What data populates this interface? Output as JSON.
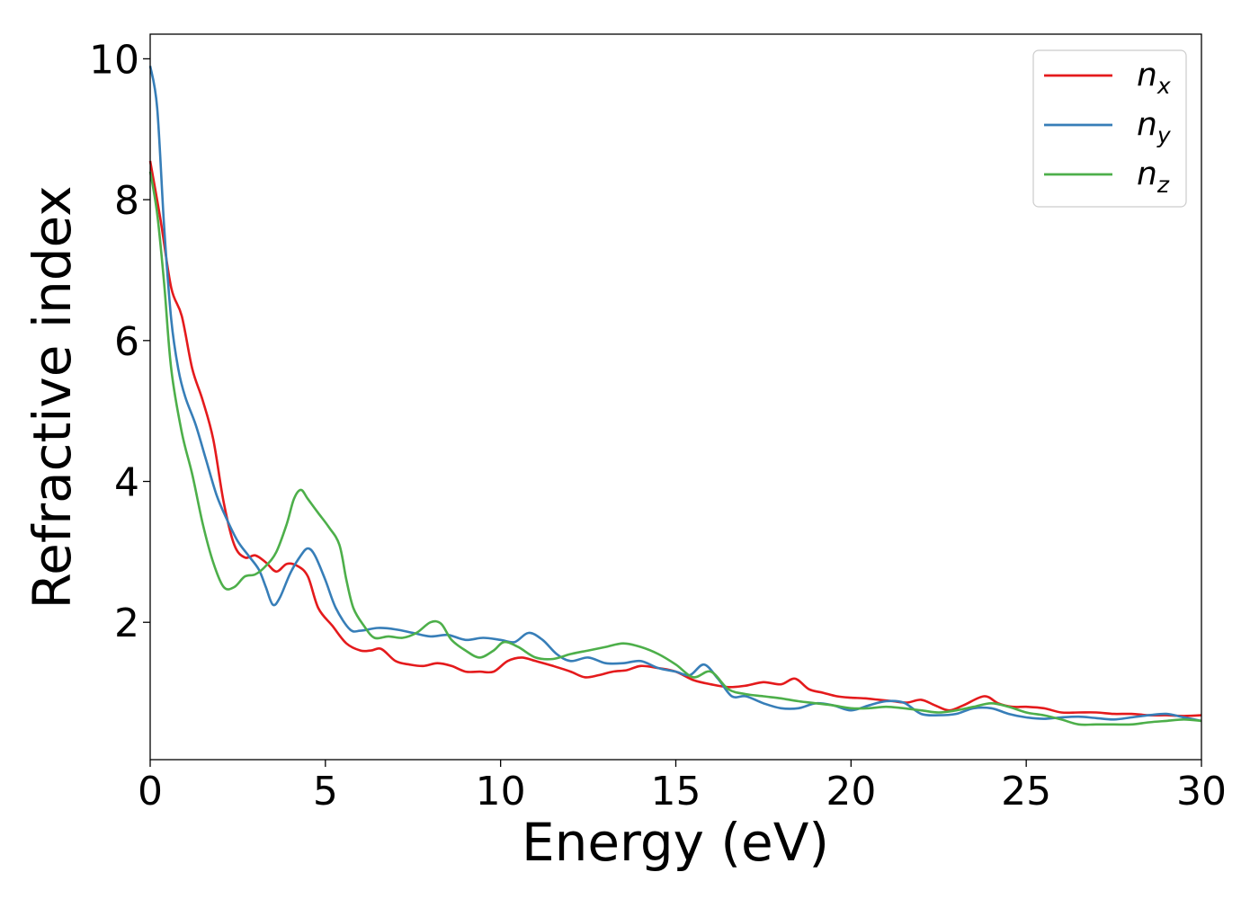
{
  "chart_data": {
    "type": "line",
    "xlabel": "Energy (eV)",
    "ylabel": "Refractive index",
    "xlim": [
      0,
      30
    ],
    "ylim": [
      0.05,
      10.35
    ],
    "xticks": [
      "0",
      "5",
      "10",
      "15",
      "20",
      "25",
      "30"
    ],
    "yticks": [
      "2",
      "4",
      "6",
      "8",
      "10"
    ],
    "grid": false,
    "legend_position": "top-right",
    "series": [
      {
        "name": "n",
        "subscript": "x",
        "color": "#e41a1c",
        "points": [
          [
            0,
            8.55
          ],
          [
            0.3,
            7.7
          ],
          [
            0.6,
            6.75
          ],
          [
            0.9,
            6.35
          ],
          [
            1.2,
            5.6
          ],
          [
            1.5,
            5.15
          ],
          [
            1.8,
            4.6
          ],
          [
            2.1,
            3.7
          ],
          [
            2.4,
            3.1
          ],
          [
            2.7,
            2.92
          ],
          [
            3.0,
            2.95
          ],
          [
            3.3,
            2.85
          ],
          [
            3.6,
            2.72
          ],
          [
            3.9,
            2.83
          ],
          [
            4.2,
            2.8
          ],
          [
            4.5,
            2.65
          ],
          [
            4.8,
            2.2
          ],
          [
            5.2,
            1.95
          ],
          [
            5.6,
            1.7
          ],
          [
            6.0,
            1.6
          ],
          [
            6.3,
            1.6
          ],
          [
            6.6,
            1.62
          ],
          [
            7.0,
            1.45
          ],
          [
            7.4,
            1.4
          ],
          [
            7.8,
            1.38
          ],
          [
            8.2,
            1.42
          ],
          [
            8.6,
            1.38
          ],
          [
            9.0,
            1.3
          ],
          [
            9.4,
            1.3
          ],
          [
            9.8,
            1.3
          ],
          [
            10.2,
            1.45
          ],
          [
            10.6,
            1.5
          ],
          [
            11.0,
            1.45
          ],
          [
            11.5,
            1.38
          ],
          [
            12.0,
            1.3
          ],
          [
            12.4,
            1.22
          ],
          [
            12.8,
            1.25
          ],
          [
            13.2,
            1.3
          ],
          [
            13.6,
            1.32
          ],
          [
            14.0,
            1.38
          ],
          [
            14.5,
            1.35
          ],
          [
            15.0,
            1.3
          ],
          [
            15.5,
            1.18
          ],
          [
            16.0,
            1.12
          ],
          [
            16.5,
            1.08
          ],
          [
            17.0,
            1.1
          ],
          [
            17.5,
            1.15
          ],
          [
            18.0,
            1.12
          ],
          [
            18.4,
            1.2
          ],
          [
            18.8,
            1.05
          ],
          [
            19.2,
            1.0
          ],
          [
            19.6,
            0.95
          ],
          [
            20.0,
            0.93
          ],
          [
            20.4,
            0.92
          ],
          [
            20.8,
            0.9
          ],
          [
            21.2,
            0.88
          ],
          [
            21.6,
            0.86
          ],
          [
            22.0,
            0.9
          ],
          [
            22.4,
            0.82
          ],
          [
            22.8,
            0.75
          ],
          [
            23.2,
            0.82
          ],
          [
            23.8,
            0.95
          ],
          [
            24.2,
            0.85
          ],
          [
            24.6,
            0.8
          ],
          [
            25.0,
            0.8
          ],
          [
            25.5,
            0.78
          ],
          [
            26.0,
            0.72
          ],
          [
            26.5,
            0.72
          ],
          [
            27.0,
            0.72
          ],
          [
            27.5,
            0.7
          ],
          [
            28.0,
            0.7
          ],
          [
            28.5,
            0.68
          ],
          [
            29.0,
            0.68
          ],
          [
            29.5,
            0.67
          ],
          [
            30.0,
            0.68
          ]
        ]
      },
      {
        "name": "n",
        "subscript": "y",
        "color": "#377eb8",
        "points": [
          [
            0,
            9.9
          ],
          [
            0.2,
            9.3
          ],
          [
            0.4,
            7.6
          ],
          [
            0.6,
            6.3
          ],
          [
            0.8,
            5.6
          ],
          [
            1.0,
            5.2
          ],
          [
            1.3,
            4.8
          ],
          [
            1.6,
            4.3
          ],
          [
            1.9,
            3.8
          ],
          [
            2.2,
            3.45
          ],
          [
            2.5,
            3.15
          ],
          [
            2.8,
            2.95
          ],
          [
            3.1,
            2.75
          ],
          [
            3.3,
            2.5
          ],
          [
            3.5,
            2.25
          ],
          [
            3.7,
            2.35
          ],
          [
            4.0,
            2.7
          ],
          [
            4.3,
            2.95
          ],
          [
            4.5,
            3.05
          ],
          [
            4.7,
            2.95
          ],
          [
            5.0,
            2.6
          ],
          [
            5.3,
            2.2
          ],
          [
            5.7,
            1.9
          ],
          [
            6.0,
            1.88
          ],
          [
            6.5,
            1.92
          ],
          [
            7.0,
            1.9
          ],
          [
            7.5,
            1.85
          ],
          [
            8.0,
            1.8
          ],
          [
            8.5,
            1.82
          ],
          [
            9.0,
            1.75
          ],
          [
            9.5,
            1.78
          ],
          [
            10.0,
            1.75
          ],
          [
            10.4,
            1.72
          ],
          [
            10.8,
            1.85
          ],
          [
            11.2,
            1.75
          ],
          [
            11.6,
            1.55
          ],
          [
            12.0,
            1.45
          ],
          [
            12.5,
            1.5
          ],
          [
            13.0,
            1.42
          ],
          [
            13.5,
            1.42
          ],
          [
            14.0,
            1.45
          ],
          [
            14.5,
            1.35
          ],
          [
            15.0,
            1.3
          ],
          [
            15.4,
            1.25
          ],
          [
            15.8,
            1.4
          ],
          [
            16.2,
            1.2
          ],
          [
            16.6,
            0.95
          ],
          [
            17.0,
            0.95
          ],
          [
            17.5,
            0.85
          ],
          [
            18.0,
            0.78
          ],
          [
            18.5,
            0.78
          ],
          [
            19.0,
            0.85
          ],
          [
            19.5,
            0.82
          ],
          [
            20.0,
            0.75
          ],
          [
            20.5,
            0.82
          ],
          [
            21.0,
            0.88
          ],
          [
            21.5,
            0.86
          ],
          [
            22.0,
            0.7
          ],
          [
            22.5,
            0.68
          ],
          [
            23.0,
            0.7
          ],
          [
            23.5,
            0.78
          ],
          [
            24.0,
            0.78
          ],
          [
            24.5,
            0.7
          ],
          [
            25.0,
            0.65
          ],
          [
            25.5,
            0.63
          ],
          [
            26.0,
            0.65
          ],
          [
            26.5,
            0.66
          ],
          [
            27.0,
            0.64
          ],
          [
            27.5,
            0.62
          ],
          [
            28.0,
            0.65
          ],
          [
            28.5,
            0.68
          ],
          [
            29.0,
            0.7
          ],
          [
            29.5,
            0.65
          ],
          [
            30.0,
            0.6
          ]
        ]
      },
      {
        "name": "n",
        "subscript": "z",
        "color": "#4daf4a",
        "points": [
          [
            0,
            8.4
          ],
          [
            0.2,
            7.8
          ],
          [
            0.4,
            6.8
          ],
          [
            0.6,
            5.6
          ],
          [
            0.9,
            4.7
          ],
          [
            1.2,
            4.1
          ],
          [
            1.5,
            3.4
          ],
          [
            1.8,
            2.85
          ],
          [
            2.1,
            2.5
          ],
          [
            2.4,
            2.5
          ],
          [
            2.7,
            2.65
          ],
          [
            3.0,
            2.68
          ],
          [
            3.3,
            2.8
          ],
          [
            3.6,
            3.0
          ],
          [
            3.9,
            3.4
          ],
          [
            4.1,
            3.75
          ],
          [
            4.3,
            3.88
          ],
          [
            4.5,
            3.75
          ],
          [
            4.8,
            3.55
          ],
          [
            5.1,
            3.35
          ],
          [
            5.4,
            3.1
          ],
          [
            5.6,
            2.6
          ],
          [
            5.8,
            2.2
          ],
          [
            6.1,
            1.95
          ],
          [
            6.4,
            1.78
          ],
          [
            6.8,
            1.8
          ],
          [
            7.2,
            1.78
          ],
          [
            7.6,
            1.85
          ],
          [
            8.0,
            2.0
          ],
          [
            8.3,
            1.98
          ],
          [
            8.6,
            1.75
          ],
          [
            9.0,
            1.6
          ],
          [
            9.4,
            1.5
          ],
          [
            9.8,
            1.6
          ],
          [
            10.1,
            1.72
          ],
          [
            10.5,
            1.65
          ],
          [
            11.0,
            1.5
          ],
          [
            11.5,
            1.48
          ],
          [
            12.0,
            1.55
          ],
          [
            12.5,
            1.6
          ],
          [
            13.0,
            1.65
          ],
          [
            13.5,
            1.7
          ],
          [
            14.0,
            1.65
          ],
          [
            14.5,
            1.55
          ],
          [
            15.0,
            1.4
          ],
          [
            15.5,
            1.22
          ],
          [
            16.0,
            1.3
          ],
          [
            16.5,
            1.05
          ],
          [
            17.0,
            0.98
          ],
          [
            17.5,
            0.95
          ],
          [
            18.0,
            0.92
          ],
          [
            18.5,
            0.88
          ],
          [
            19.0,
            0.85
          ],
          [
            19.5,
            0.82
          ],
          [
            20.0,
            0.78
          ],
          [
            20.5,
            0.78
          ],
          [
            21.0,
            0.8
          ],
          [
            21.5,
            0.78
          ],
          [
            22.0,
            0.75
          ],
          [
            22.5,
            0.72
          ],
          [
            23.0,
            0.75
          ],
          [
            23.5,
            0.8
          ],
          [
            24.0,
            0.85
          ],
          [
            24.5,
            0.8
          ],
          [
            25.0,
            0.72
          ],
          [
            25.5,
            0.68
          ],
          [
            26.0,
            0.62
          ],
          [
            26.5,
            0.55
          ],
          [
            27.0,
            0.55
          ],
          [
            27.5,
            0.55
          ],
          [
            28.0,
            0.55
          ],
          [
            28.5,
            0.58
          ],
          [
            29.0,
            0.6
          ],
          [
            29.5,
            0.62
          ],
          [
            30.0,
            0.6
          ]
        ]
      }
    ]
  }
}
